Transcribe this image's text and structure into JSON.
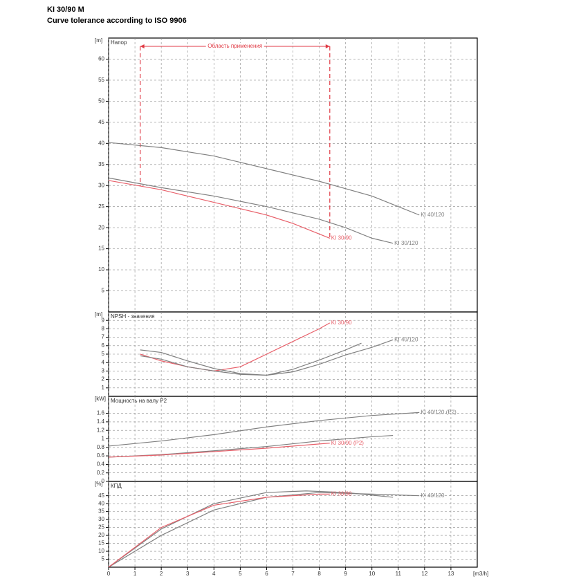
{
  "title": "KI 30/90 M",
  "subtitle": "Curve tolerance according to ISO 9906",
  "chart_data": [
    {
      "type": "line",
      "y_unit": "[m]",
      "label": "Напор",
      "xlim": [
        0,
        14
      ],
      "ylim": [
        0,
        65
      ],
      "yticks": [
        5,
        10,
        15,
        20,
        25,
        30,
        35,
        40,
        45,
        50,
        55,
        60
      ],
      "grid": true,
      "annotation": {
        "text": "Область применения",
        "x": [
          1.2,
          8.4
        ],
        "color": "#e03a44"
      },
      "series": [
        {
          "name": "KI 40/120",
          "color": "#808080",
          "x": [
            0,
            2,
            4,
            6,
            8,
            10,
            11,
            11.8
          ],
          "values": [
            40.2,
            39,
            37,
            34,
            31,
            27.5,
            25,
            23
          ]
        },
        {
          "name": "KI 30/120",
          "color": "#808080",
          "x": [
            0,
            2,
            4,
            6,
            8,
            9,
            10,
            10.8
          ],
          "values": [
            31.8,
            29.5,
            27.5,
            25,
            22,
            20,
            17.5,
            16.3
          ]
        },
        {
          "name": "KI 30/90",
          "color": "#e8606a",
          "x": [
            0,
            2,
            4,
            6,
            7,
            8,
            8.4
          ],
          "values": [
            31.2,
            29,
            26,
            23,
            21,
            18.5,
            17.5
          ]
        }
      ]
    },
    {
      "type": "line",
      "y_unit": "[m]",
      "label": "NPSH - значения",
      "xlim": [
        0,
        14
      ],
      "ylim": [
        0,
        10
      ],
      "yticks": [
        1,
        2,
        3,
        4,
        5,
        6,
        7,
        8,
        9
      ],
      "grid": true,
      "series": [
        {
          "name": "KI 30/90",
          "color": "#e8606a",
          "x": [
            1.2,
            2,
            3,
            4,
            5,
            6,
            7,
            8,
            8.4
          ],
          "values": [
            5,
            4.2,
            3.5,
            3,
            3.5,
            5,
            6.5,
            8,
            8.7
          ]
        },
        {
          "color": "#808080",
          "x": [
            1.2,
            2,
            3,
            4,
            5,
            6,
            7,
            8,
            9,
            9.6
          ],
          "values": [
            5.5,
            5.2,
            4.2,
            3.3,
            2.7,
            2.5,
            3.2,
            4.3,
            5.5,
            6.3
          ]
        },
        {
          "name": "KI 40/120",
          "color": "#808080",
          "x": [
            1.2,
            2,
            3,
            4,
            5,
            6,
            7,
            8,
            9,
            10,
            10.8
          ],
          "values": [
            4.8,
            4.4,
            3.5,
            3,
            2.6,
            2.5,
            2.9,
            3.8,
            4.9,
            5.8,
            6.7
          ]
        }
      ]
    },
    {
      "type": "line",
      "y_unit": "[kW]",
      "label": "Мощность на валу P2",
      "xlim": [
        0,
        14
      ],
      "ylim": [
        0,
        2
      ],
      "yticks": [
        0,
        0.2,
        0.4,
        0.6,
        0.8,
        1,
        1.2,
        1.4,
        1.6
      ],
      "grid": true,
      "series": [
        {
          "name": "KI 40/120 (P2)",
          "color": "#808080",
          "x": [
            0,
            2,
            4,
            6,
            8,
            10,
            11.8
          ],
          "values": [
            0.83,
            0.95,
            1.1,
            1.28,
            1.43,
            1.55,
            1.62
          ]
        },
        {
          "color": "#808080",
          "x": [
            0,
            2,
            4,
            6,
            8,
            10,
            10.8
          ],
          "values": [
            0.57,
            0.63,
            0.72,
            0.82,
            0.95,
            1.05,
            1.08
          ]
        },
        {
          "name": "KI 30/90 (P2)",
          "color": "#e8606a",
          "x": [
            0,
            2,
            4,
            6,
            8,
            8.4
          ],
          "values": [
            0.57,
            0.62,
            0.7,
            0.78,
            0.88,
            0.9
          ]
        }
      ]
    },
    {
      "type": "line",
      "y_unit": "[%]",
      "label": "КПД",
      "xlim": [
        0,
        14
      ],
      "ylim": [
        0,
        54
      ],
      "yticks": [
        5,
        10,
        15,
        20,
        25,
        30,
        35,
        40,
        45
      ],
      "grid": true,
      "xlabel": "[m3/h]",
      "xticks": [
        0,
        1,
        2,
        3,
        4,
        5,
        6,
        7,
        8,
        9,
        10,
        11,
        12,
        13
      ],
      "series": [
        {
          "name": "KI 40/120",
          "color": "#808080",
          "x": [
            0,
            2,
            4,
            6,
            8,
            10,
            11.8
          ],
          "values": [
            0,
            20,
            36,
            44,
            47,
            46,
            45
          ]
        },
        {
          "color": "#808080",
          "x": [
            0,
            2,
            4,
            6,
            7.5,
            9,
            10.8
          ],
          "values": [
            0,
            24,
            40,
            47,
            48,
            47,
            44
          ]
        },
        {
          "name": "KI 30/90",
          "color": "#e8606a",
          "x": [
            0,
            2,
            4,
            6,
            8,
            8.4
          ],
          "values": [
            0,
            25,
            39,
            44,
            46,
            46
          ]
        }
      ]
    }
  ]
}
